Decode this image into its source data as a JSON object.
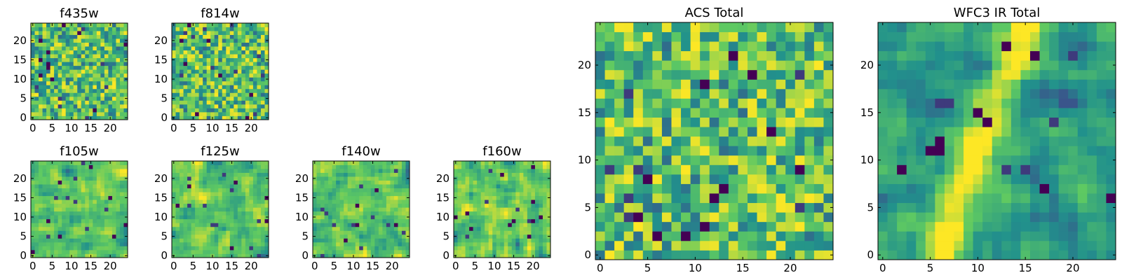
{
  "figure": {
    "title": ""
  },
  "colormap": {
    "name": "viridis",
    "stops": [
      "#440154",
      "#3b528b",
      "#21918c",
      "#5ec962",
      "#fde725"
    ]
  },
  "chart_data": [
    {
      "id": "f435w",
      "type": "heatmap",
      "title": "f435w",
      "grid": [
        25,
        25
      ],
      "xlim": [
        0,
        25
      ],
      "ylim": [
        0,
        25
      ],
      "xticks": [
        0,
        5,
        10,
        15,
        20
      ],
      "yticks": [
        0,
        5,
        10,
        15,
        20
      ],
      "texture": "noise",
      "seed": 11
    },
    {
      "id": "f814w",
      "type": "heatmap",
      "title": "f814w",
      "grid": [
        25,
        25
      ],
      "xlim": [
        0,
        25
      ],
      "ylim": [
        0,
        25
      ],
      "xticks": [
        0,
        5,
        10,
        15,
        20
      ],
      "yticks": [
        0,
        5,
        10,
        15,
        20
      ],
      "texture": "noise",
      "seed": 23
    },
    {
      "id": "f105w",
      "type": "heatmap",
      "title": "f105w",
      "grid": [
        25,
        25
      ],
      "xlim": [
        0,
        25
      ],
      "ylim": [
        0,
        25
      ],
      "xticks": [
        0,
        5,
        10,
        15,
        20
      ],
      "yticks": [
        0,
        5,
        10,
        15,
        20
      ],
      "texture": "smooth",
      "seed": 37
    },
    {
      "id": "f125w",
      "type": "heatmap",
      "title": "f125w",
      "grid": [
        25,
        25
      ],
      "xlim": [
        0,
        25
      ],
      "ylim": [
        0,
        25
      ],
      "xticks": [
        0,
        5,
        10,
        15,
        20
      ],
      "yticks": [
        0,
        5,
        10,
        15,
        20
      ],
      "texture": "smooth",
      "seed": 41
    },
    {
      "id": "f140w",
      "type": "heatmap",
      "title": "f140w",
      "grid": [
        25,
        25
      ],
      "xlim": [
        0,
        25
      ],
      "ylim": [
        0,
        25
      ],
      "xticks": [
        0,
        5,
        10,
        15,
        20
      ],
      "yticks": [
        0,
        5,
        10,
        15,
        20
      ],
      "texture": "smooth",
      "seed": 53
    },
    {
      "id": "f160w",
      "type": "heatmap",
      "title": "f160w",
      "grid": [
        25,
        25
      ],
      "xlim": [
        0,
        25
      ],
      "ylim": [
        0,
        25
      ],
      "xticks": [
        0,
        5,
        10,
        15,
        20
      ],
      "yticks": [
        0,
        5,
        10,
        15,
        20
      ],
      "texture": "smooth",
      "seed": 67
    },
    {
      "id": "acs-total",
      "type": "heatmap",
      "title": "ACS Total",
      "grid": [
        25,
        25
      ],
      "xlim": [
        0,
        25
      ],
      "ylim": [
        0,
        25
      ],
      "xticks": [
        0,
        5,
        10,
        15,
        20
      ],
      "yticks": [
        0,
        5,
        10,
        15,
        20
      ],
      "texture": "noise",
      "seed": 79
    },
    {
      "id": "wfc3-ir-total",
      "type": "heatmap",
      "title": "WFC3 IR Total",
      "grid": [
        25,
        25
      ],
      "xlim": [
        0,
        25
      ],
      "ylim": [
        0,
        25
      ],
      "xticks": [
        0,
        5,
        10,
        15,
        20
      ],
      "yticks": [
        0,
        5,
        10,
        15,
        20
      ],
      "texture": "source",
      "seed": 97
    }
  ]
}
